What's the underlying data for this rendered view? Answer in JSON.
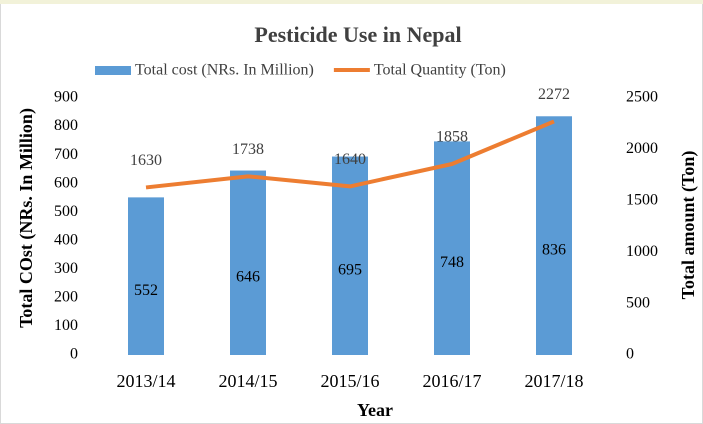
{
  "chart_data": {
    "type": "bar",
    "title": "Pesticide Use in Nepal",
    "categories": [
      "2013/14",
      "2014/15",
      "2015/16",
      "2016/17",
      "2017/18"
    ],
    "series": [
      {
        "name": "Total cost (NRs. In Million)",
        "color": "#5b9bd5",
        "type": "bar",
        "values": [
          552,
          646,
          695,
          748,
          836
        ]
      },
      {
        "name": "Total Quantity (Ton)",
        "color": "#ed7d31",
        "type": "line",
        "axis": "y2",
        "values": [
          1630,
          1738,
          1640,
          1858,
          2272
        ]
      }
    ],
    "x_label": "Year",
    "y_label": "Total COst (NRs. In Million)",
    "y2_label": "Total amount (Ton)",
    "ylim": [
      0,
      900
    ],
    "yticks": [
      0,
      100,
      200,
      300,
      400,
      500,
      600,
      700,
      800,
      900
    ],
    "y2lim": [
      0,
      2500
    ],
    "y2ticks": [
      0,
      500,
      1000,
      1500,
      2000,
      2500
    ],
    "legend": "top"
  }
}
